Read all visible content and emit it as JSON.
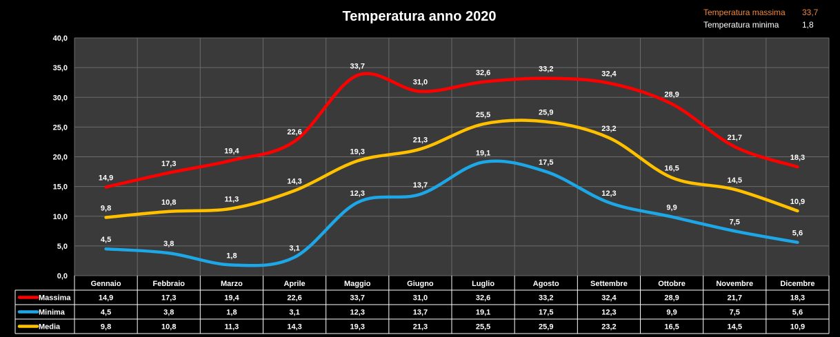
{
  "summary": {
    "max_label": "Temperatura massima",
    "max_value": "33,7",
    "min_label": "Temperatura minima",
    "min_value": "1,8",
    "max_color": "#f0883a",
    "min_color": "#ffffff"
  },
  "chart_data": {
    "type": "line",
    "title": "Temperatura anno 2020",
    "xlabel": "",
    "ylabel": "",
    "ylim": [
      0,
      40
    ],
    "yticks": [
      "0,0",
      "5,0",
      "10,0",
      "15,0",
      "20,0",
      "25,0",
      "30,0",
      "35,0",
      "40,0"
    ],
    "grid": true,
    "legend": "data-table",
    "categories": [
      "Gennaio",
      "Febbraio",
      "Marzo",
      "Aprile",
      "Maggio",
      "Giugno",
      "Luglio",
      "Agosto",
      "Settembre",
      "Ottobre",
      "Novembre",
      "Dicembre"
    ],
    "series": [
      {
        "name": "Massima",
        "color": "#ff0000",
        "values": [
          14.9,
          17.3,
          19.4,
          22.6,
          33.7,
          31.0,
          32.6,
          33.2,
          32.4,
          28.9,
          21.7,
          18.3
        ],
        "labels": [
          "14,9",
          "17,3",
          "19,4",
          "22,6",
          "33,7",
          "31,0",
          "32,6",
          "33,2",
          "32,4",
          "28,9",
          "21,7",
          "18,3"
        ]
      },
      {
        "name": "Minima",
        "color": "#1ea7e6",
        "values": [
          4.5,
          3.8,
          1.8,
          3.1,
          12.3,
          13.7,
          19.1,
          17.5,
          12.3,
          9.9,
          7.5,
          5.6
        ],
        "labels": [
          "4,5",
          "3,8",
          "1,8",
          "3,1",
          "12,3",
          "13,7",
          "19,1",
          "17,5",
          "12,3",
          "9,9",
          "7,5",
          "5,6"
        ]
      },
      {
        "name": "Media",
        "color": "#ffc000",
        "values": [
          9.8,
          10.8,
          11.3,
          14.3,
          19.3,
          21.3,
          25.5,
          25.9,
          23.2,
          16.5,
          14.5,
          10.9
        ],
        "labels": [
          "9,8",
          "10,8",
          "11,3",
          "14,3",
          "19,3",
          "21,3",
          "25,5",
          "25,9",
          "23,2",
          "16,5",
          "14,5",
          "10,9"
        ]
      }
    ]
  }
}
